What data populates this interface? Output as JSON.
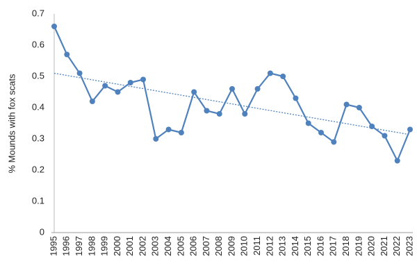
{
  "chart_data": {
    "type": "line",
    "y_label": "% Mounds with fox scats",
    "categories": [
      "1995",
      "1996",
      "1997",
      "1998",
      "1999",
      "2000",
      "2001",
      "2002",
      "2003",
      "2004",
      "2005",
      "2006",
      "2007",
      "2008",
      "2009",
      "2010",
      "2011",
      "2012",
      "2013",
      "2014",
      "2015",
      "2016",
      "2017",
      "2018",
      "2019",
      "2020",
      "2021",
      "2022",
      "2023"
    ],
    "values": [
      0.66,
      0.57,
      0.51,
      0.42,
      0.47,
      0.45,
      0.48,
      0.49,
      0.3,
      0.33,
      0.32,
      0.45,
      0.39,
      0.38,
      0.46,
      0.38,
      0.46,
      0.51,
      0.5,
      0.43,
      0.35,
      0.32,
      0.29,
      0.41,
      0.4,
      0.34,
      0.31,
      0.23,
      0.33
    ],
    "color": "#4f81bd",
    "ylim": [
      0,
      0.7
    ],
    "yticks": [
      0,
      0.1,
      0.2,
      0.3,
      0.4,
      0.5,
      0.6,
      0.7
    ],
    "trendline": true,
    "grid": false
  }
}
